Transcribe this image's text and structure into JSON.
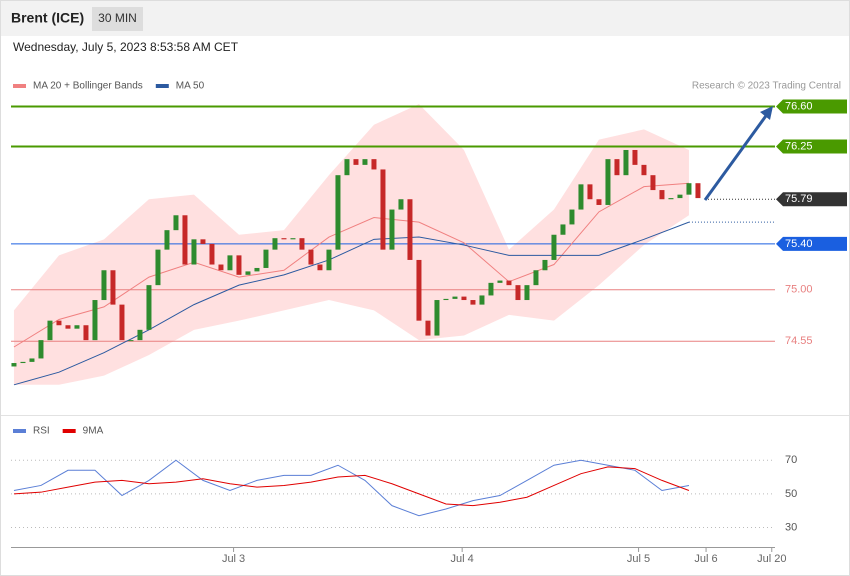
{
  "header": {
    "symbol": "Brent (ICE)",
    "interval": "30 MIN",
    "timestamp": "Wednesday, July 5, 2023 8:53:58 AM CET"
  },
  "chart_data": [
    {
      "type": "candlestick",
      "credit": "Research © 2023 Trading Central",
      "xlim": [
        -0.33,
        84.56
      ],
      "xticks": [
        {
          "value": 24.4,
          "label": "Jul 3"
        },
        {
          "value": 49.8,
          "label": "Jul 4"
        },
        {
          "value": 69.4,
          "label": "Jul 5"
        },
        {
          "value": 76.9,
          "label": "Jul 6"
        },
        {
          "value": 84.2,
          "label": "Jul 20"
        }
      ],
      "ylim": [
        73.95,
        76.7
      ],
      "up_color": "#2e8b2e",
      "down_color": "#c62828",
      "open": [
        74.33,
        74.36,
        74.37,
        74.4,
        74.56,
        74.73,
        74.69,
        74.66,
        74.69,
        74.56,
        74.91,
        75.17,
        74.87,
        74.56,
        74.56,
        74.65,
        75.04,
        75.35,
        75.52,
        75.65,
        75.22,
        75.44,
        75.4,
        75.22,
        75.17,
        75.3,
        75.13,
        75.16,
        75.19,
        75.35,
        75.45,
        75.44,
        75.45,
        75.35,
        75.22,
        75.17,
        75.35,
        76.0,
        76.14,
        76.09,
        76.14,
        76.05,
        75.35,
        75.7,
        75.79,
        75.26,
        74.73,
        74.6,
        74.91,
        74.92,
        74.94,
        74.91,
        74.87,
        74.95,
        75.06,
        75.08,
        75.04,
        74.91,
        75.04,
        75.17,
        75.26,
        75.48,
        75.57,
        75.7,
        75.92,
        75.79,
        75.74,
        76.14,
        76.0,
        76.22,
        76.09,
        76.0,
        75.87,
        75.79,
        75.8,
        75.83,
        75.93
      ],
      "close": [
        74.36,
        74.37,
        74.4,
        74.56,
        74.73,
        74.69,
        74.66,
        74.69,
        74.56,
        74.91,
        75.17,
        74.87,
        74.56,
        74.56,
        74.65,
        75.04,
        75.35,
        75.52,
        75.65,
        75.22,
        75.44,
        75.4,
        75.22,
        75.17,
        75.3,
        75.13,
        75.16,
        75.19,
        75.35,
        75.45,
        75.44,
        75.45,
        75.35,
        75.22,
        75.17,
        75.35,
        76.0,
        76.14,
        76.09,
        76.14,
        76.05,
        75.35,
        75.7,
        75.79,
        75.26,
        74.73,
        74.6,
        74.91,
        74.92,
        74.94,
        74.91,
        74.87,
        74.95,
        75.06,
        75.08,
        75.04,
        74.91,
        75.04,
        75.17,
        75.26,
        75.48,
        75.57,
        75.7,
        75.92,
        75.79,
        75.74,
        76.14,
        76.0,
        76.22,
        76.09,
        76.0,
        75.87,
        75.79,
        75.8,
        75.83,
        75.93,
        75.8
      ],
      "series": [
        {
          "name": "MA 20 + Bollinger Bands",
          "color": "#f08080",
          "band_color": "#ffe0e0",
          "x": [
            0,
            5,
            10,
            15,
            20,
            25,
            30,
            35,
            40,
            45,
            50,
            55,
            60,
            65,
            70,
            75
          ],
          "values": [
            74.5,
            74.74,
            74.85,
            75.11,
            75.24,
            75.11,
            75.17,
            75.46,
            75.63,
            75.59,
            75.41,
            75.07,
            75.22,
            75.68,
            75.9,
            75.93
          ],
          "upper": [
            74.82,
            75.3,
            75.44,
            75.79,
            75.83,
            75.48,
            75.52,
            76.0,
            76.44,
            76.62,
            76.22,
            75.35,
            75.7,
            76.31,
            76.4,
            76.22
          ],
          "lower": [
            74.17,
            74.17,
            74.25,
            74.43,
            74.65,
            74.73,
            74.82,
            74.91,
            74.82,
            74.56,
            74.6,
            74.78,
            74.73,
            75.04,
            75.39,
            75.65
          ]
        },
        {
          "name": "MA 50",
          "color": "#2c5aa0",
          "x": [
            0,
            5,
            10,
            15,
            20,
            25,
            30,
            35,
            40,
            45,
            50,
            55,
            60,
            65,
            70,
            75
          ],
          "values": [
            74.17,
            74.28,
            74.45,
            74.65,
            74.87,
            75.04,
            75.13,
            75.26,
            75.44,
            75.46,
            75.39,
            75.3,
            75.3,
            75.3,
            75.44,
            75.59
          ]
        }
      ],
      "levels": [
        {
          "value": 76.6,
          "label": "76.60",
          "color": "#4a9a00",
          "tag": true
        },
        {
          "value": 76.25,
          "label": "76.25",
          "color": "#4a9a00",
          "tag": true
        },
        {
          "value": 75.79,
          "label": "75.79",
          "color": "#333333",
          "tag": true,
          "dotted": true
        },
        {
          "value": 75.4,
          "label": "75.40",
          "color": "#1a5fe0",
          "tag": true
        },
        {
          "value": 75,
          "label": "75.00",
          "color": "#e88080",
          "tag": false
        },
        {
          "value": 74.55,
          "label": "74.55",
          "color": "#e88080",
          "tag": false
        }
      ]
    },
    {
      "type": "line",
      "xlim": [
        -0.33,
        84.56
      ],
      "ylim": [
        22,
        82
      ],
      "yticks": [
        30,
        50,
        70
      ],
      "x": [
        0,
        3,
        6,
        9,
        12,
        15,
        18,
        21,
        24,
        27,
        30,
        33,
        36,
        39,
        42,
        45,
        48,
        51,
        54,
        57,
        60,
        63,
        66,
        69,
        72,
        75
      ],
      "series": [
        {
          "name": "RSI",
          "color": "#5b7fd6",
          "values": [
            52,
            55,
            64,
            64,
            49,
            58,
            70,
            58,
            52,
            58,
            61,
            61,
            67,
            58,
            43,
            37,
            41,
            46,
            49,
            58,
            67,
            70,
            67,
            64,
            52,
            55
          ]
        },
        {
          "name": "9MA",
          "color": "#e00000",
          "values": [
            50,
            51,
            54,
            57,
            58,
            56,
            57,
            59,
            56,
            54,
            55,
            57,
            60,
            61,
            56,
            50,
            44,
            43,
            45,
            48,
            55,
            62,
            66,
            65,
            58,
            52
          ]
        }
      ]
    }
  ]
}
